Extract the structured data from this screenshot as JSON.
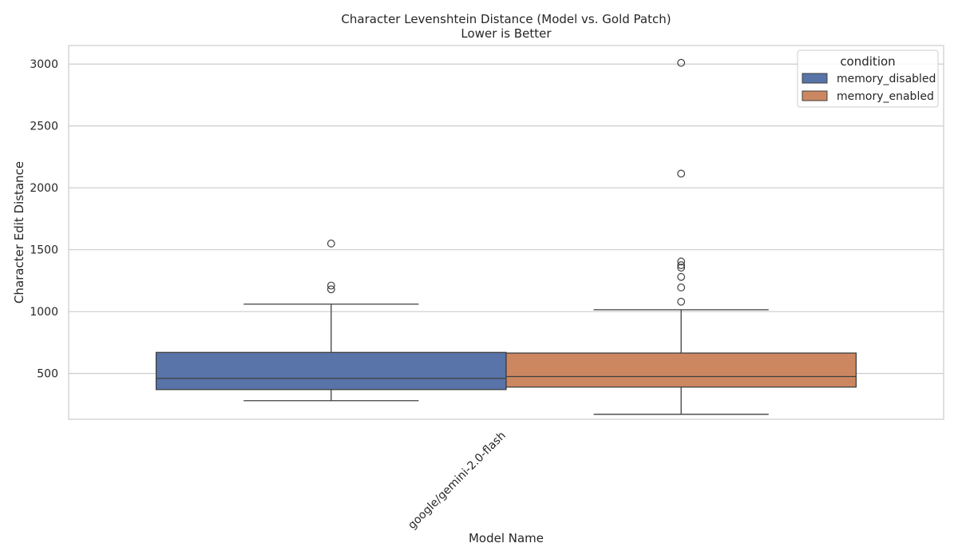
{
  "chart_data": {
    "type": "box",
    "title": "Character Levenshtein Distance (Model vs. Gold Patch)",
    "subtitle": "Lower is Better",
    "xlabel": "Model Name",
    "ylabel": "Character Edit Distance",
    "categories": [
      "google/gemini-2.0-flash"
    ],
    "ylim": [
      130,
      3150
    ],
    "yticks": [
      500,
      1000,
      1500,
      2000,
      2500,
      3000
    ],
    "grid": true,
    "legend": {
      "title": "condition",
      "position": "top-right"
    },
    "series": [
      {
        "name": "memory_disabled",
        "color": "#5874a8",
        "boxes": [
          {
            "category": "google/gemini-2.0-flash",
            "whisker_low": 280,
            "q1": 370,
            "median": 460,
            "q3": 670,
            "whisker_high": 1060,
            "outliers": [
              1180,
              1210,
              1550
            ]
          }
        ]
      },
      {
        "name": "memory_enabled",
        "color": "#cc8761",
        "boxes": [
          {
            "category": "google/gemini-2.0-flash",
            "whisker_low": 170,
            "q1": 390,
            "median": 475,
            "q3": 665,
            "whisker_high": 1015,
            "outliers": [
              1080,
              1195,
              1280,
              1355,
              1375,
              1405,
              2115,
              3010
            ]
          }
        ]
      }
    ]
  }
}
